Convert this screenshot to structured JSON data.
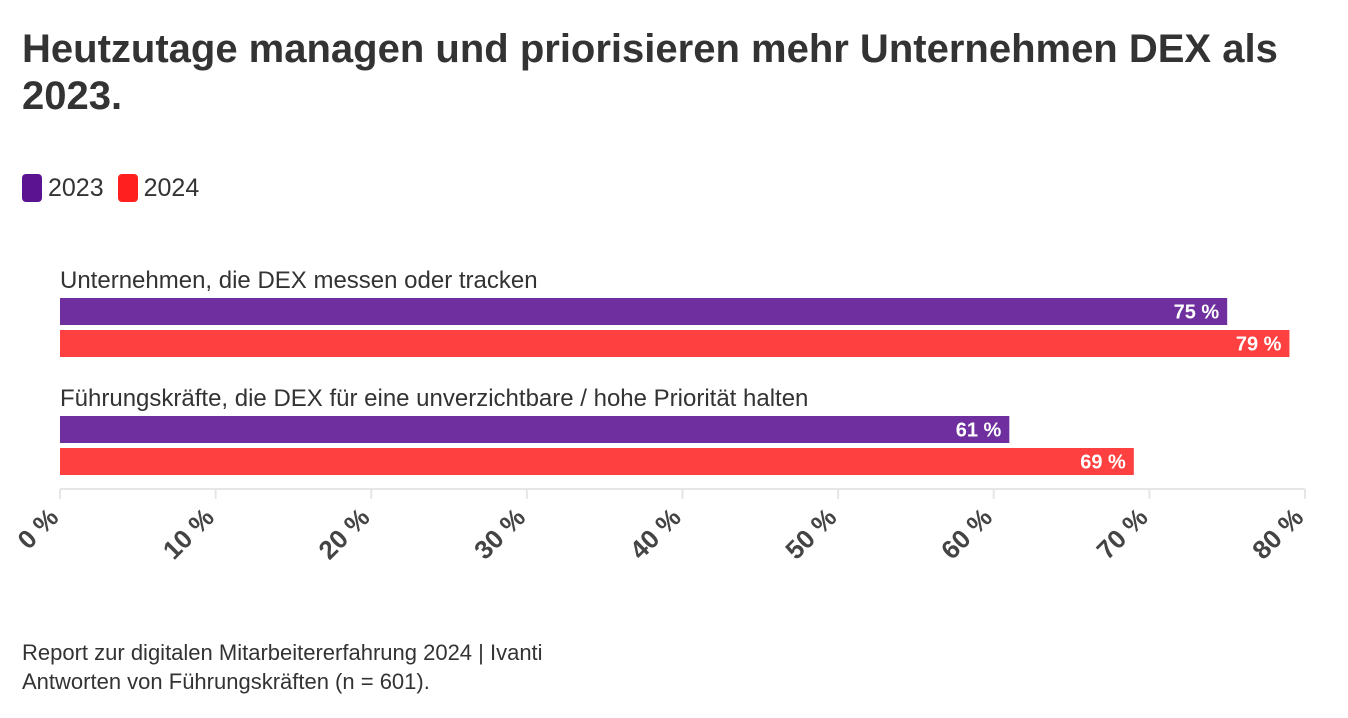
{
  "title": "Heutzutage managen und priorisieren mehr Unternehmen DEX als 2023.",
  "legend": [
    {
      "label": "2023",
      "color": "#5b1391"
    },
    {
      "label": "2024",
      "color": "#ff1f1f"
    }
  ],
  "source": {
    "line1": "Report zur digitalen Mitarbeitererfahrung 2024 | Ivanti",
    "line2": "Antworten von Führungskräften (n = 601)."
  },
  "chart_data": {
    "type": "bar",
    "orientation": "horizontal",
    "title": "Heutzutage managen und priorisieren mehr Unternehmen DEX als 2023.",
    "categories": [
      "Unternehmen, die DEX messen oder tracken",
      "Führungskräfte, die DEX für eine unverzichtbare / hohe Priorität halten"
    ],
    "series": [
      {
        "name": "2023",
        "values": [
          75,
          61
        ],
        "color": "#6f2f9e",
        "labels": [
          "75 %",
          "61 %"
        ]
      },
      {
        "name": "2024",
        "values": [
          79,
          69
        ],
        "color": "#ff4040",
        "labels": [
          "79 %",
          "69 %"
        ]
      }
    ],
    "xlim": [
      0,
      80
    ],
    "ticks": [
      "0 %",
      "10 %",
      "20 %",
      "30 %",
      "40 %",
      "50 %",
      "60 %",
      "70 %",
      "80 %"
    ],
    "legend_position": "top-left",
    "grid": false
  }
}
